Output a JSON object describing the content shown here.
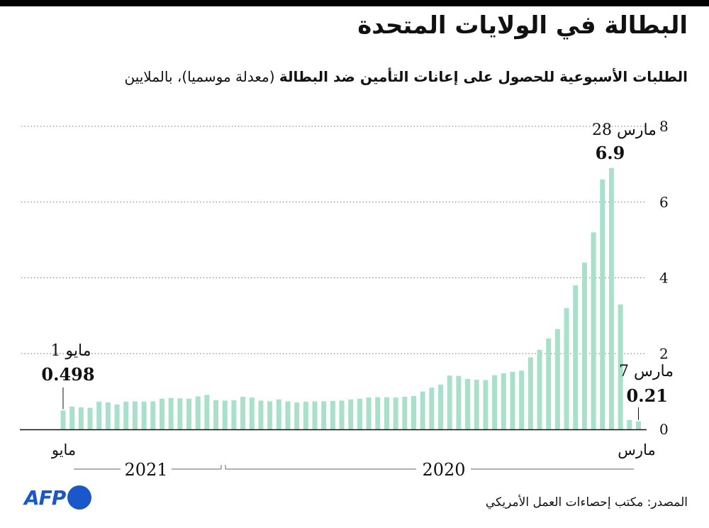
{
  "title": "البطالة في الولايات المتحدة",
  "subtitle_bold": "الطلبات الأسبوعية للحصول على إعانات التأمين ضد البطالة",
  "subtitle_rest": " (معدلة موسميا)، بالملايين",
  "source": "المصدر: مكتب إحصاءات العمل الأمريكي",
  "logo_text": "AFP",
  "colors": {
    "bar": "#a8e0cc",
    "text": "#111111",
    "grid": "#777777",
    "logo": "#1a57c8"
  },
  "chart_data": {
    "type": "bar",
    "title": "البطالة في الولايات المتحدة",
    "ylim": [
      0,
      8
    ],
    "y_ticks": [
      "0",
      "2",
      "4",
      "6",
      "8"
    ],
    "grid": "dotted horizontal",
    "x_tick_labels": {
      "left": "مايو",
      "right": "مارس"
    },
    "year_labels": [
      "2021",
      "2020"
    ],
    "annotations": [
      {
        "date_label": "28 مارس",
        "value_label": "6.9"
      },
      {
        "date_label": "7 مارس",
        "value_label": "0.21"
      },
      {
        "date_label": "1 مايو",
        "value_label": "0.498"
      }
    ],
    "values_oldest_first": [
      0.21,
      0.25,
      3.3,
      6.9,
      6.6,
      5.2,
      4.4,
      3.8,
      3.2,
      2.65,
      2.4,
      2.1,
      1.9,
      1.55,
      1.52,
      1.48,
      1.43,
      1.3,
      1.31,
      1.33,
      1.41,
      1.42,
      1.18,
      1.1,
      1.0,
      0.88,
      0.86,
      0.84,
      0.85,
      0.85,
      0.84,
      0.81,
      0.79,
      0.76,
      0.75,
      0.74,
      0.74,
      0.73,
      0.71,
      0.74,
      0.79,
      0.74,
      0.76,
      0.84,
      0.86,
      0.77,
      0.76,
      0.77,
      0.91,
      0.87,
      0.81,
      0.82,
      0.83,
      0.81,
      0.74,
      0.73,
      0.74,
      0.73,
      0.66,
      0.71,
      0.73,
      0.57,
      0.58,
      0.6,
      0.498
    ]
  }
}
